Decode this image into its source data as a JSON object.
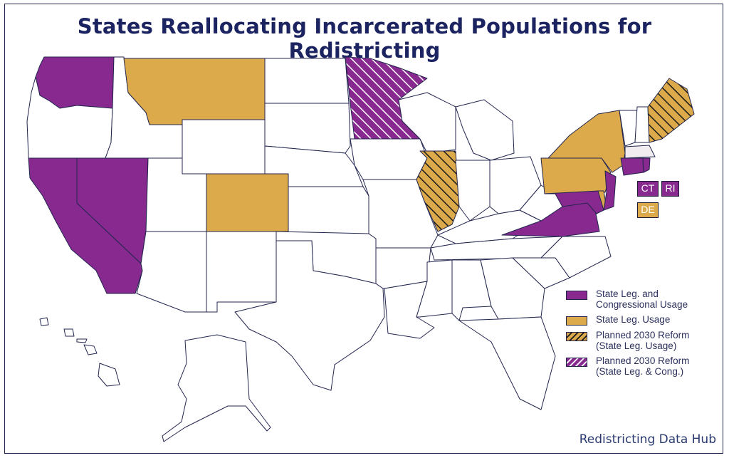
{
  "title": "States Reallocating Incarcerated Populations for Redistricting",
  "credit": "Redistricting Data Hub",
  "colors": {
    "purple": "#87298f",
    "gold": "#dcaa4b",
    "border": "#23264f",
    "hatch_line": "#1b1b1b"
  },
  "state_boxes": [
    {
      "id": "ct",
      "label": "CT",
      "category": "purple"
    },
    {
      "id": "ri",
      "label": "RI",
      "category": "purple"
    },
    {
      "id": "de",
      "label": "DE",
      "category": "gold"
    }
  ],
  "legend": [
    {
      "id": "leg-cong",
      "label_line1": "State Leg. and",
      "label_line2": "Congressional Usage",
      "style": "purple"
    },
    {
      "id": "leg-state",
      "label_line1": "State Leg. Usage",
      "label_line2": "",
      "style": "gold"
    },
    {
      "id": "planned-state",
      "label_line1": "Planned 2030 Reform",
      "label_line2": "(State Leg. Usage)",
      "style": "gold-hatch"
    },
    {
      "id": "planned-cong",
      "label_line1": "Planned 2030 Reform",
      "label_line2": "(State Leg. & Cong.)",
      "style": "purple-hatch"
    }
  ]
}
